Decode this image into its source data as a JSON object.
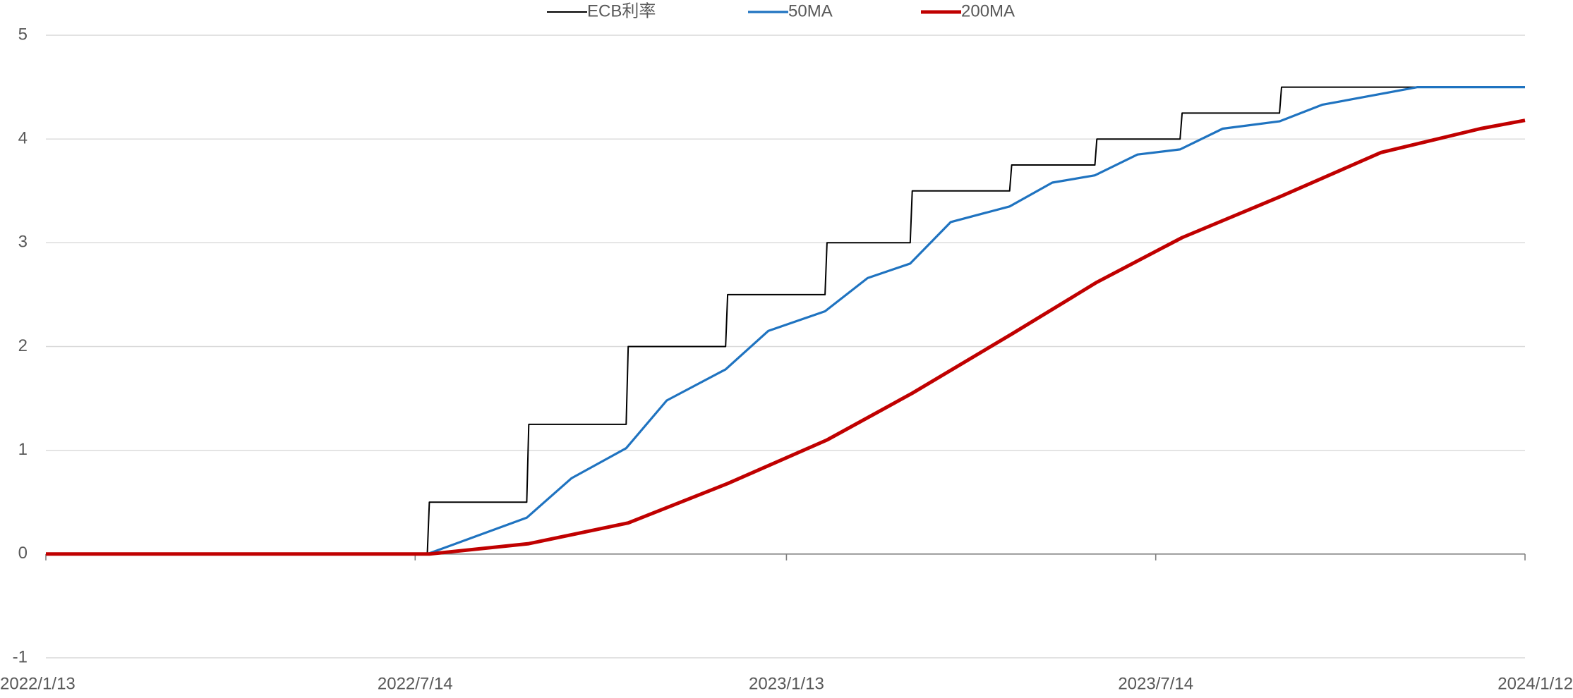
{
  "chart_data": {
    "type": "line",
    "xlim": [
      "2022/1/13",
      "2024/1/12"
    ],
    "xticks": [
      "2022/1/13",
      "2022/7/14",
      "2023/1/13",
      "2023/7/14",
      "2024/1/12"
    ],
    "ylim": [
      -1,
      5
    ],
    "yticks": [
      -1,
      0,
      1,
      2,
      3,
      4,
      5
    ],
    "grid": true,
    "legend": "top",
    "series": [
      {
        "name": "ECB利率",
        "color": "#000000",
        "x": [
          "2022/1/13",
          "2022/7/20",
          "2022/7/21",
          "2022/9/7",
          "2022/9/8",
          "2022/10/26",
          "2022/10/27",
          "2022/12/14",
          "2022/12/15",
          "2023/2/1",
          "2023/2/2",
          "2023/3/15",
          "2023/3/16",
          "2023/5/3",
          "2023/5/4",
          "2023/6/14",
          "2023/6/15",
          "2023/7/26",
          "2023/7/27",
          "2023/9/13",
          "2023/9/14",
          "2024/1/12"
        ],
        "values": [
          0,
          0,
          0.5,
          0.5,
          1.25,
          1.25,
          2,
          2,
          2.5,
          2.5,
          3,
          3,
          3.5,
          3.5,
          3.75,
          3.75,
          4,
          4,
          4.25,
          4.25,
          4.5,
          4.5
        ]
      },
      {
        "name": "50MA",
        "color": "#1f73c0",
        "x": [
          "2022/1/13",
          "2022/7/20",
          "2022/9/7",
          "2022/9/29",
          "2022/10/26",
          "2022/11/15",
          "2022/12/14",
          "2023/1/4",
          "2023/2/1",
          "2023/2/22",
          "2023/3/15",
          "2023/4/4",
          "2023/5/3",
          "2023/5/24",
          "2023/6/14",
          "2023/7/5",
          "2023/7/26",
          "2023/8/16",
          "2023/9/13",
          "2023/10/4",
          "2023/11/20",
          "2024/1/12"
        ],
        "values": [
          0,
          0,
          0.35,
          0.73,
          1.02,
          1.48,
          1.78,
          2.15,
          2.34,
          2.66,
          2.8,
          3.2,
          3.35,
          3.58,
          3.65,
          3.85,
          3.9,
          4.1,
          4.17,
          4.33,
          4.5,
          4.5
        ]
      },
      {
        "name": "200MA",
        "color": "#c00000",
        "x": [
          "2022/1/13",
          "2022/7/21",
          "2022/9/8",
          "2022/10/27",
          "2022/12/15",
          "2023/2/2",
          "2023/3/16",
          "2023/5/4",
          "2023/6/15",
          "2023/7/27",
          "2023/9/14",
          "2023/11/2",
          "2023/12/21",
          "2024/1/12"
        ],
        "values": [
          0,
          0,
          0.1,
          0.3,
          0.68,
          1.1,
          1.55,
          2.12,
          2.62,
          3.05,
          3.45,
          3.87,
          4.1,
          4.18
        ]
      }
    ]
  }
}
